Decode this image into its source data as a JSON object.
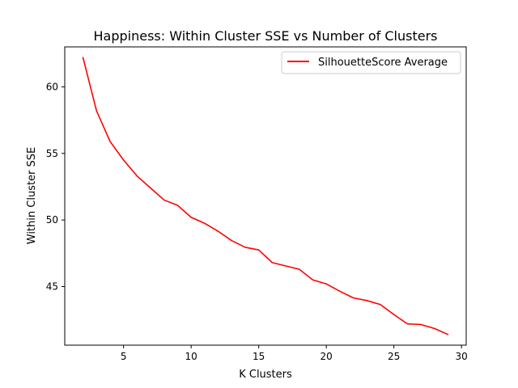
{
  "chart_data": {
    "type": "line",
    "title": "Happiness: Within Cluster SSE vs Number of Clusters",
    "xlabel": "K Clusters",
    "ylabel": "Within Cluster SSE",
    "xlim": [
      0.65,
      30.35
    ],
    "ylim": [
      40.6,
      63.0
    ],
    "xticks": [
      5,
      10,
      15,
      20,
      25,
      30
    ],
    "yticks": [
      45,
      50,
      55,
      60
    ],
    "grid": false,
    "legend_position": "upper-right",
    "series": [
      {
        "name": "SilhouetteScore Average",
        "color": "#ff0000",
        "x": [
          2,
          3,
          4,
          5,
          6,
          7,
          8,
          9,
          10,
          11,
          12,
          13,
          14,
          15,
          16,
          17,
          18,
          19,
          20,
          21,
          22,
          23,
          24,
          25,
          26,
          27,
          28,
          29
        ],
        "y": [
          62.2,
          58.2,
          55.9,
          54.5,
          53.3,
          52.4,
          51.5,
          51.1,
          50.2,
          49.75,
          49.15,
          48.45,
          47.95,
          47.75,
          46.8,
          46.55,
          46.3,
          45.5,
          45.2,
          44.65,
          44.15,
          43.95,
          43.65,
          42.9,
          42.2,
          42.15,
          41.85,
          41.4
        ]
      }
    ]
  }
}
